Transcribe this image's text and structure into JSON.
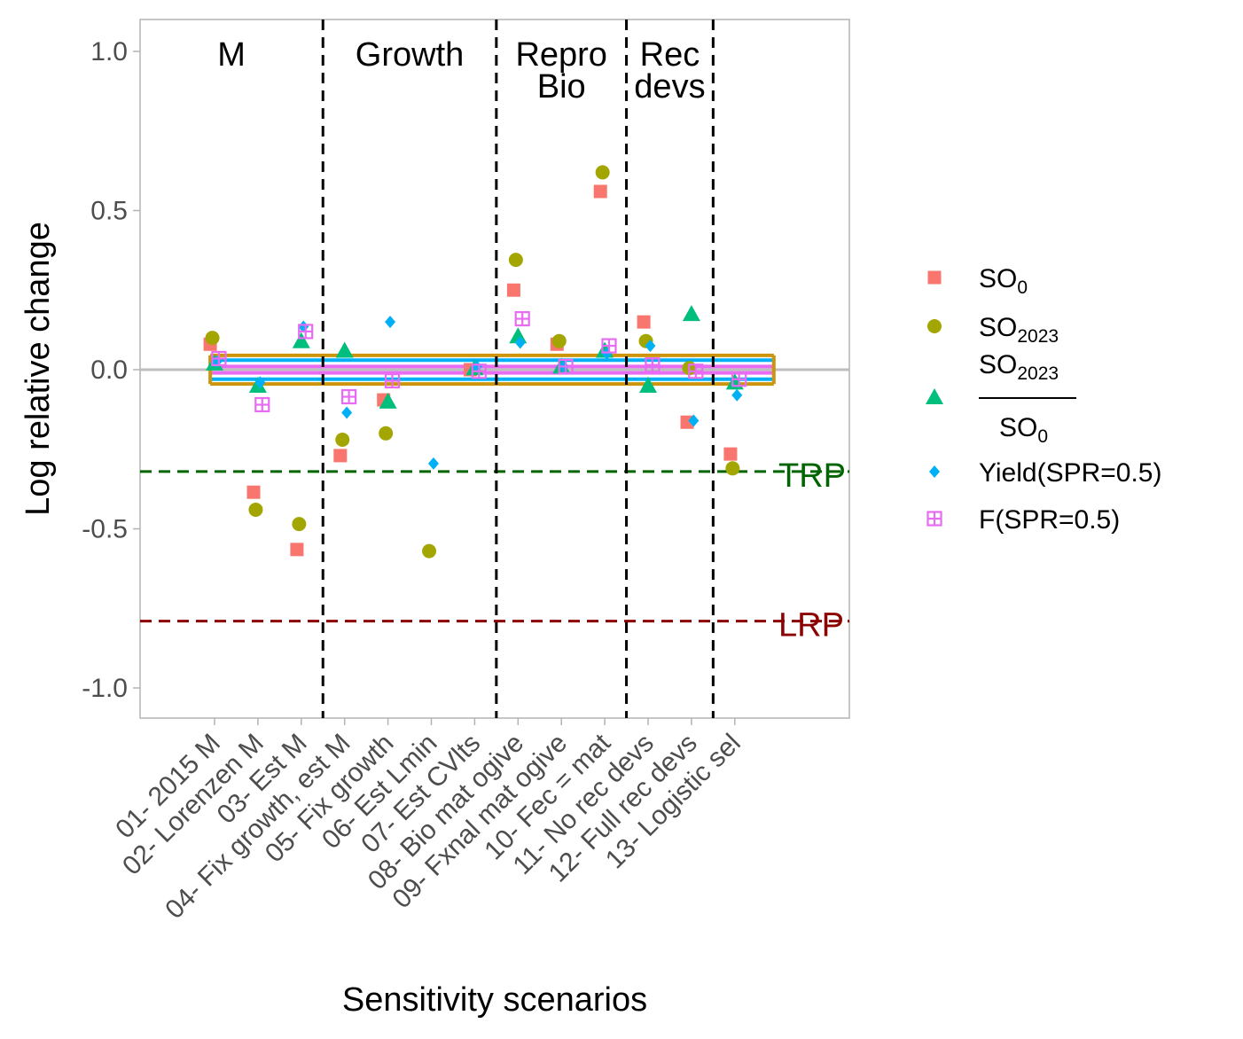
{
  "chart_data": {
    "type": "scatter",
    "xlabel": "Sensitivity scenarios",
    "ylabel": "Log relative change",
    "ylim": [
      -1.1,
      1.1
    ],
    "yticks": [
      "1.0",
      "0.5",
      "0.0",
      "-0.5",
      "-1.0"
    ],
    "ytick_values": [
      1.0,
      0.5,
      0.0,
      -0.5,
      -1.0
    ],
    "grid": false,
    "legend_position": "right",
    "categories": [
      "01- 2015 M",
      "02- Lorenzen M",
      "03- Est M",
      "04- Fix growth, est M",
      "05- Fix growth",
      "06- Est Lmin",
      "07- Est CVlts",
      "08- Bio mat ogive",
      "09- Fxnal mat ogive",
      "10- Fec = mat",
      "11- No rec devs",
      "12- Full rec devs",
      "13- Logistic sel"
    ],
    "groups": [
      {
        "label_lines": [
          "M"
        ],
        "from": 1,
        "to": 3
      },
      {
        "label_lines": [
          "Growth"
        ],
        "from": 4,
        "to": 7
      },
      {
        "label_lines": [
          "Repro",
          "Bio"
        ],
        "from": 8,
        "to": 10
      },
      {
        "label_lines": [
          "Rec",
          "devs"
        ],
        "from": 11,
        "to": 12
      }
    ],
    "group_dividers_after": [
      3,
      7,
      10,
      12
    ],
    "reference_lines": [
      {
        "label": "TRP",
        "value": -0.32,
        "color": "#006400"
      },
      {
        "label": "LRP",
        "value": -0.79,
        "color": "#8B0000"
      }
    ],
    "zero_line": {
      "value": 0.0,
      "color": "#bebebe"
    },
    "base_band": {
      "range_x": [
        0.9,
        13.9
      ],
      "lines": [
        {
          "value": 0.045,
          "color": "#CD950C"
        },
        {
          "value": -0.045,
          "color": "#CD950C"
        },
        {
          "value": 0.03,
          "color": "#00B0F6"
        },
        {
          "value": -0.03,
          "color": "#00B0F6"
        },
        {
          "value": 0.01,
          "color": "#E76BF3"
        },
        {
          "value": -0.01,
          "color": "#E76BF3"
        }
      ]
    },
    "series": [
      {
        "key": "so0",
        "shape": "square",
        "color": "#F8766D",
        "offset": -0.1,
        "values": [
          0.08,
          -0.385,
          -0.565,
          -0.27,
          -0.095,
          null,
          0.0,
          0.25,
          0.08,
          0.56,
          0.15,
          -0.165,
          -0.265
        ]
      },
      {
        "key": "so2023",
        "shape": "circle",
        "color": "#A3A500",
        "offset": -0.05,
        "values": [
          0.1,
          -0.44,
          -0.485,
          -0.22,
          -0.2,
          -0.57,
          null,
          0.345,
          0.09,
          0.62,
          0.09,
          0.005,
          -0.31
        ]
      },
      {
        "key": "ratio",
        "shape": "triangle",
        "color": "#00BF7D",
        "offset": 0.0,
        "values": [
          0.02,
          -0.05,
          0.09,
          0.06,
          -0.1,
          null,
          0.005,
          0.105,
          0.01,
          0.06,
          -0.05,
          0.175,
          -0.04
        ]
      },
      {
        "key": "yield",
        "shape": "diamond",
        "color": "#00B0F6",
        "offset": 0.05,
        "values": [
          0.025,
          -0.04,
          0.135,
          -0.135,
          0.15,
          -0.295,
          0.01,
          0.085,
          0.01,
          0.05,
          0.075,
          -0.16,
          -0.08
        ]
      },
      {
        "key": "f",
        "shape": "square-cross",
        "color": "#E76BF3",
        "offset": 0.1,
        "values": [
          0.035,
          -0.11,
          0.12,
          -0.085,
          -0.035,
          null,
          -0.005,
          0.16,
          0.01,
          0.075,
          0.015,
          -0.005,
          -0.03
        ]
      }
    ],
    "legend": [
      {
        "key": "so0",
        "label": "SO",
        "sub": "0"
      },
      {
        "key": "so2023",
        "label": "SO",
        "sub": "2023"
      },
      {
        "key": "ratio",
        "num": "SO",
        "num_sub": "2023",
        "den": "SO",
        "den_sub": "0"
      },
      {
        "key": "yield",
        "label": "Yield(SPR=0.5)"
      },
      {
        "key": "f",
        "label": "F(SPR=0.5)"
      }
    ]
  }
}
